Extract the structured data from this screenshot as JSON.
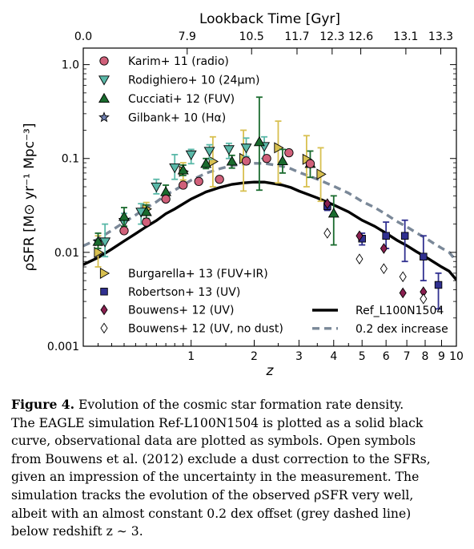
{
  "chart_data": {
    "type": "scatter",
    "xlabel": "z",
    "top_xlabel": "Lookback Time [Gyr]",
    "ylabel": "ρSFR [M⊙ yr⁻¹ Mpc⁻³]",
    "x_scale": "log(1+z)",
    "y_scale": "log",
    "xlim": [
      0,
      10
    ],
    "ylim": [
      0.001,
      1.5
    ],
    "x_ticks": [
      {
        "v": 1,
        "label": "1"
      },
      {
        "v": 2,
        "label": "2"
      },
      {
        "v": 3,
        "label": "3"
      },
      {
        "v": 4,
        "label": "4"
      },
      {
        "v": 5,
        "label": "5"
      },
      {
        "v": 6,
        "label": "6"
      },
      {
        "v": 7,
        "label": "7"
      },
      {
        "v": 8,
        "label": "8"
      },
      {
        "v": 9,
        "label": "9"
      },
      {
        "v": 10,
        "label": "10"
      }
    ],
    "top_ticks": [
      {
        "z": 0,
        "label": "0.0"
      },
      {
        "z": 0.95,
        "label": "7.9"
      },
      {
        "z": 1.95,
        "label": "10.5"
      },
      {
        "z": 2.95,
        "label": "11.7"
      },
      {
        "z": 3.95,
        "label": "12.3"
      },
      {
        "z": 4.95,
        "label": "12.6"
      },
      {
        "z": 6.95,
        "label": "13.1"
      },
      {
        "z": 8.95,
        "label": "13.3"
      }
    ],
    "y_ticks": [
      {
        "v": 0.001,
        "label": "0.001"
      },
      {
        "v": 0.01,
        "label": "0.01"
      },
      {
        "v": 0.1,
        "label": "0.1"
      },
      {
        "v": 1,
        "label": "1.0"
      }
    ],
    "legend_upper_left": [
      "karim",
      "rodighiero",
      "cucciati",
      "gilbank"
    ],
    "legend_lower_left": [
      "burgarella",
      "robertson",
      "bouwens",
      "bouwens_nodust"
    ],
    "legend_lower_right": [
      "ref",
      "increase"
    ],
    "series": {
      "karim": {
        "name": "Karim+ 11 (radio)",
        "marker": "circle",
        "color": "#d0607a",
        "points": [
          [
            0.3,
            0.017
          ],
          [
            0.5,
            0.021
          ],
          [
            0.7,
            0.037
          ],
          [
            0.9,
            0.052
          ],
          [
            1.1,
            0.057
          ],
          [
            1.4,
            0.06
          ],
          [
            1.85,
            0.094
          ],
          [
            2.25,
            0.1
          ],
          [
            2.75,
            0.115
          ],
          [
            3.3,
            0.088
          ]
        ]
      },
      "rodighiero": {
        "name": "Rodighiero+ 10 (24μm)",
        "marker": "tri-down",
        "color": "#5ab8a8",
        "points": [
          [
            0.15,
            0.013,
            0.009,
            0.02
          ],
          [
            0.3,
            0.021,
            0.016,
            0.026
          ],
          [
            0.45,
            0.027,
            0.02,
            0.033
          ],
          [
            0.6,
            0.05,
            0.042,
            0.06
          ],
          [
            0.8,
            0.08,
            0.06,
            0.11
          ],
          [
            1.0,
            0.11,
            0.088,
            0.125
          ],
          [
            1.25,
            0.12,
            0.098,
            0.14
          ],
          [
            1.55,
            0.125,
            0.1,
            0.145
          ],
          [
            1.85,
            0.13,
            0.105,
            0.165
          ],
          [
            2.2,
            0.135,
            0.1,
            0.17
          ]
        ]
      },
      "cucciati": {
        "name": "Cucciati+ 12 (FUV)",
        "marker": "tri-up",
        "color": "#1a6b2e",
        "points": [
          [
            0.1,
            0.013,
            0.011,
            0.016
          ],
          [
            0.3,
            0.024,
            0.019,
            0.03
          ],
          [
            0.5,
            0.027,
            0.023,
            0.032
          ],
          [
            0.7,
            0.044,
            0.037,
            0.052
          ],
          [
            0.9,
            0.075,
            0.066,
            0.085
          ],
          [
            1.2,
            0.088,
            0.078,
            0.1
          ],
          [
            1.6,
            0.093,
            0.079,
            0.108
          ],
          [
            2.1,
            0.15,
            0.046,
            0.45
          ],
          [
            2.6,
            0.094,
            0.07,
            0.125
          ],
          [
            3.3,
            0.088,
            0.063,
            0.12
          ],
          [
            4.0,
            0.026,
            0.012,
            0.04
          ]
        ]
      },
      "gilbank": {
        "name": "Gilbank+ 10 (Hα)",
        "marker": "star",
        "color": "#7080b0",
        "points": [
          [
            0.1,
            0.013
          ]
        ]
      },
      "burgarella": {
        "name": "Burgarella+ 13 (FUV+IR)",
        "marker": "tri-right",
        "color": "#d8c050",
        "points": [
          [
            0.1,
            0.01,
            0.007,
            0.015
          ],
          [
            0.5,
            0.029,
            0.025,
            0.034
          ],
          [
            0.9,
            0.073,
            0.059,
            0.09
          ],
          [
            1.3,
            0.093,
            0.05,
            0.17
          ],
          [
            1.8,
            0.1,
            0.045,
            0.2
          ],
          [
            2.5,
            0.13,
            0.055,
            0.25
          ],
          [
            3.2,
            0.098,
            0.05,
            0.175
          ],
          [
            3.6,
            0.068,
            0.035,
            0.13
          ]
        ]
      },
      "robertson": {
        "name": "Robertson+ 13 (UV)",
        "marker": "square",
        "color": "#303090",
        "points": [
          [
            3.8,
            0.031,
            0.028,
            0.034
          ],
          [
            5.0,
            0.014,
            0.012,
            0.016
          ],
          [
            6.0,
            0.015,
            0.011,
            0.021
          ],
          [
            6.9,
            0.015,
            0.008,
            0.022
          ],
          [
            7.9,
            0.009,
            0.005,
            0.015
          ],
          [
            8.8,
            0.0045,
            0.0025,
            0.006
          ]
        ]
      },
      "bouwens": {
        "name": "Bouwens+ 12 (UV)",
        "marker": "diamond",
        "color": "#8a2050",
        "points": [
          [
            3.8,
            0.033
          ],
          [
            4.9,
            0.015
          ],
          [
            5.9,
            0.011
          ],
          [
            6.8,
            0.0037
          ],
          [
            7.9,
            0.0038
          ]
        ]
      },
      "bouwens_nodust": {
        "name": "Bouwens+ 12 (UV, no dust)",
        "marker": "diamond-open",
        "color": "#000000",
        "points": [
          [
            3.8,
            0.016
          ],
          [
            4.9,
            0.0085
          ],
          [
            5.9,
            0.0067
          ],
          [
            6.8,
            0.0055
          ],
          [
            7.9,
            0.0032
          ]
        ]
      },
      "ref": {
        "name": "Ref_L100N1504",
        "line": "solid",
        "color": "#000000",
        "points": [
          [
            0,
            0.0074
          ],
          [
            0.1,
            0.0088
          ],
          [
            0.2,
            0.0108
          ],
          [
            0.3,
            0.0132
          ],
          [
            0.4,
            0.0158
          ],
          [
            0.5,
            0.0188
          ],
          [
            0.6,
            0.0218
          ],
          [
            0.7,
            0.0258
          ],
          [
            0.8,
            0.029
          ],
          [
            1.0,
            0.037
          ],
          [
            1.2,
            0.044
          ],
          [
            1.4,
            0.049
          ],
          [
            1.6,
            0.053
          ],
          [
            1.8,
            0.055
          ],
          [
            2.0,
            0.056
          ],
          [
            2.2,
            0.056
          ],
          [
            2.4,
            0.054
          ],
          [
            2.6,
            0.052
          ],
          [
            2.8,
            0.049
          ],
          [
            3.0,
            0.045
          ],
          [
            3.5,
            0.038
          ],
          [
            4.0,
            0.032
          ],
          [
            4.5,
            0.027
          ],
          [
            5.0,
            0.022
          ],
          [
            5.5,
            0.019
          ],
          [
            6.0,
            0.016
          ],
          [
            6.5,
            0.0135
          ],
          [
            7.0,
            0.0118
          ],
          [
            7.5,
            0.0102
          ],
          [
            8.0,
            0.009
          ],
          [
            8.5,
            0.0079
          ],
          [
            9.0,
            0.007
          ],
          [
            9.5,
            0.0063
          ],
          [
            10.0,
            0.0051
          ]
        ]
      },
      "increase": {
        "name": "0.2 dex increase",
        "line": "dashed",
        "color": "#7a8898",
        "points": [
          [
            0,
            0.0117
          ],
          [
            0.1,
            0.0139
          ],
          [
            0.2,
            0.0171
          ],
          [
            0.3,
            0.0209
          ],
          [
            0.4,
            0.025
          ],
          [
            0.5,
            0.0298
          ],
          [
            0.6,
            0.0345
          ],
          [
            0.7,
            0.0409
          ],
          [
            0.8,
            0.046
          ],
          [
            1.0,
            0.0586
          ],
          [
            1.2,
            0.0697
          ],
          [
            1.4,
            0.0777
          ],
          [
            1.6,
            0.084
          ],
          [
            1.8,
            0.0872
          ],
          [
            2.0,
            0.0888
          ],
          [
            2.2,
            0.0888
          ],
          [
            2.4,
            0.0856
          ],
          [
            2.6,
            0.0824
          ],
          [
            2.8,
            0.0777
          ],
          [
            3.0,
            0.0713
          ],
          [
            3.5,
            0.0602
          ],
          [
            4.0,
            0.0507
          ],
          [
            4.5,
            0.0428
          ],
          [
            5.0,
            0.0349
          ],
          [
            5.5,
            0.0301
          ],
          [
            6.0,
            0.0254
          ],
          [
            6.5,
            0.0214
          ],
          [
            7.0,
            0.0187
          ],
          [
            7.5,
            0.0162
          ],
          [
            8.0,
            0.0143
          ],
          [
            8.5,
            0.0125
          ],
          [
            9.0,
            0.0111
          ],
          [
            9.5,
            0.01
          ],
          [
            10.0,
            0.0081
          ]
        ]
      }
    }
  },
  "caption": {
    "label": "Figure 4.",
    "lines": [
      " Evolution of the cosmic star formation rate density.",
      "The EAGLE simulation Ref-L100N1504 is plotted as a solid black",
      "curve, observational data are plotted as symbols. Open symbols",
      "from Bouwens et al. (2012) exclude a dust correction to the SFRs,",
      "given an impression of the uncertainty in the measurement. The",
      "simulation tracks the evolution of the observed ρSFR very well,",
      "albeit with an almost constant 0.2 dex offset (grey dashed line)",
      "below redshift z ∼ 3."
    ]
  }
}
